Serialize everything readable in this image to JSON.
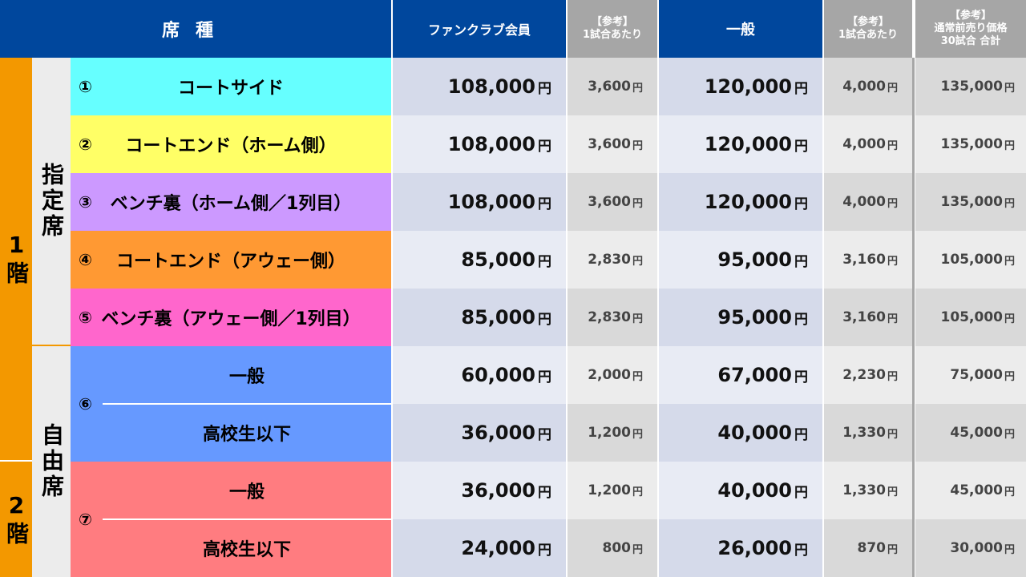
{
  "header": {
    "seat_type": "席種",
    "fanclub": "ファンクラブ会員",
    "ref_fc_line1": "【参考】",
    "ref_fc_line2": "1試合あたり",
    "general": "一般",
    "ref_gen_line1": "【参考】",
    "ref_gen_line2": "1試合あたり",
    "regular_line1": "【参考】",
    "regular_line2": "通常前売り価格",
    "regular_line3": "30試合 合計"
  },
  "floors": {
    "first": "1階",
    "second": "2階"
  },
  "kinds": {
    "reserved": "指定席",
    "free": "自由席"
  },
  "yen": "円",
  "colors": {
    "header": "#00479d",
    "header_ref": "#a6a6a6",
    "floor": "#f39800",
    "court_side": "#66ffff",
    "court_end_home": "#ffff66",
    "bench_home": "#cc99ff",
    "court_end_away": "#ff9933",
    "bench_away": "#ff66cc",
    "free_1f": "#6699ff",
    "free_2f": "#ff7c80"
  },
  "rows": [
    {
      "num": "①",
      "label": "コートサイド",
      "fc": "108,000",
      "fc_per": "3,600",
      "gen": "120,000",
      "gen_per": "4,000",
      "regular": "135,000"
    },
    {
      "num": "②",
      "label": "コートエンド（ホーム側）",
      "fc": "108,000",
      "fc_per": "3,600",
      "gen": "120,000",
      "gen_per": "4,000",
      "regular": "135,000"
    },
    {
      "num": "③",
      "label": "ベンチ裏（ホーム側／1列目）",
      "fc": "108,000",
      "fc_per": "3,600",
      "gen": "120,000",
      "gen_per": "4,000",
      "regular": "135,000"
    },
    {
      "num": "④",
      "label": "コートエンド（アウェー側）",
      "fc": "85,000",
      "fc_per": "2,830",
      "gen": "95,000",
      "gen_per": "3,160",
      "regular": "105,000"
    },
    {
      "num": "⑤",
      "label": "ベンチ裏（アウェー側／1列目）",
      "fc": "85,000",
      "fc_per": "2,830",
      "gen": "95,000",
      "gen_per": "3,160",
      "regular": "105,000"
    },
    {
      "num": "⑥",
      "label": "一般",
      "fc": "60,000",
      "fc_per": "2,000",
      "gen": "67,000",
      "gen_per": "2,230",
      "regular": "75,000"
    },
    {
      "num": "",
      "label": "高校生以下",
      "fc": "36,000",
      "fc_per": "1,200",
      "gen": "40,000",
      "gen_per": "1,330",
      "regular": "45,000"
    },
    {
      "num": "⑦",
      "label": "一般",
      "fc": "36,000",
      "fc_per": "1,200",
      "gen": "40,000",
      "gen_per": "1,330",
      "regular": "45,000"
    },
    {
      "num": "",
      "label": "高校生以下",
      "fc": "24,000",
      "fc_per": "800",
      "gen": "26,000",
      "gen_per": "870",
      "regular": "30,000"
    }
  ]
}
